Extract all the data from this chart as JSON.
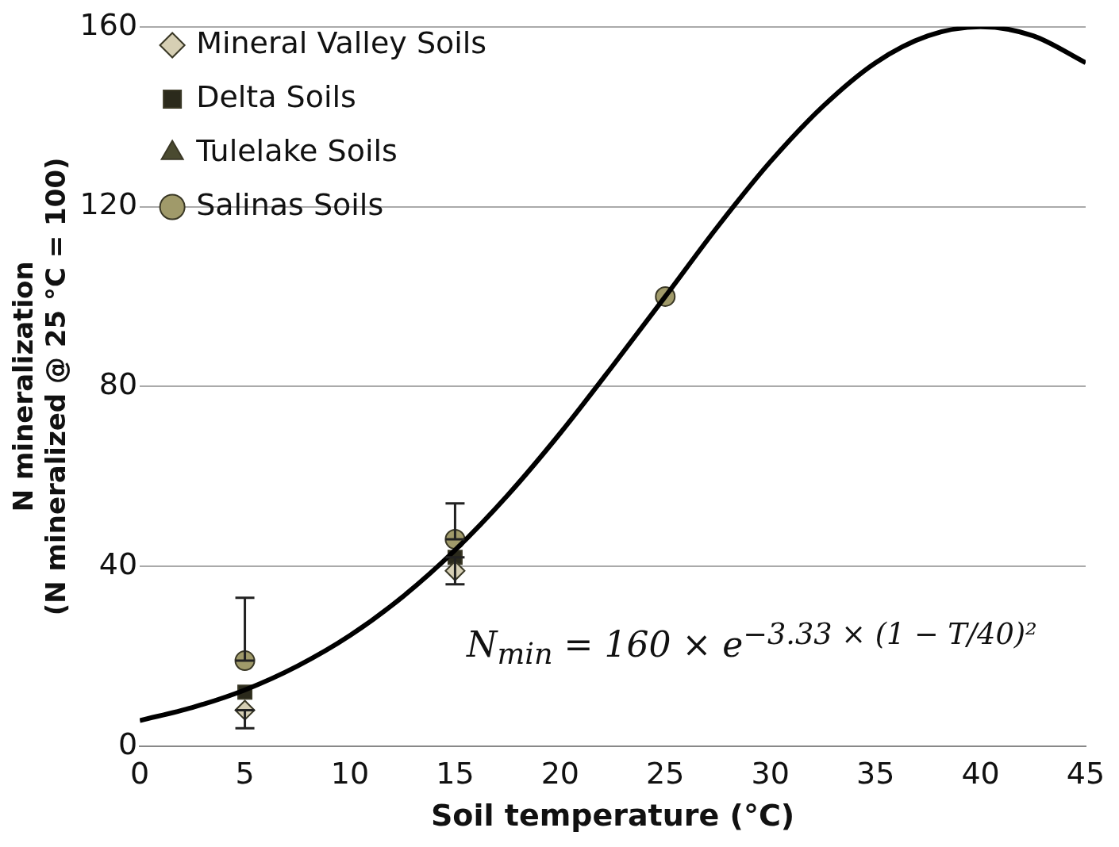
{
  "chart_data": {
    "type": "scatter",
    "xlabel": "Soil temperature (°C)",
    "ylabel": "N mineralization\n(N mineralized @ 25 °C = 100)",
    "xlim": [
      0,
      45
    ],
    "xticks": [
      0,
      5,
      10,
      15,
      20,
      25,
      30,
      35,
      40,
      45
    ],
    "ylim": [
      0,
      160
    ],
    "yticks": [
      0,
      40,
      80,
      120,
      160
    ],
    "grid": "y",
    "legend": "top left",
    "annotations": [
      "N$_{min}$ = 160 × e$^{−3.33 × (1 − T/40)²}$"
    ],
    "series": [
      {
        "type": "line",
        "color": "#000000",
        "marker": "none",
        "line_style": "solid",
        "x": [
          0,
          2.5,
          5,
          7.5,
          10,
          12.5,
          15,
          17.5,
          20,
          22.5,
          25,
          27.5,
          30,
          32.5,
          35,
          37.5,
          40,
          42.5,
          45
        ],
        "values": [
          5.7,
          8.6,
          12.5,
          17.8,
          24.6,
          33.2,
          43.6,
          55.8,
          69.6,
          84.6,
          100,
          115.6,
          130,
          142.3,
          152,
          158,
          160,
          158,
          152
        ]
      },
      {
        "name": "Mineral Valley Soils",
        "color": "#d6cfb4",
        "marker": "diamond",
        "x": [
          5,
          15
        ],
        "values": [
          8,
          39
        ],
        "errors": [
          [
            4,
            8
          ],
          null
        ]
      },
      {
        "name": "Delta Soils",
        "color": "#2b2a1c",
        "marker": "square",
        "x": [
          5,
          15
        ],
        "values": [
          12,
          42
        ],
        "errors": [
          null,
          [
            36,
            42
          ]
        ]
      },
      {
        "name": "Tulelake Soils",
        "color": "#4a4a30",
        "marker": "triangle"
      },
      {
        "name": "Salinas Soils",
        "color": "#a09a6a",
        "marker": "circle",
        "x": [
          5,
          15,
          25
        ],
        "values": [
          19,
          46,
          100
        ],
        "errors": [
          [
            19,
            33
          ],
          [
            46,
            54
          ],
          null
        ]
      }
    ]
  }
}
